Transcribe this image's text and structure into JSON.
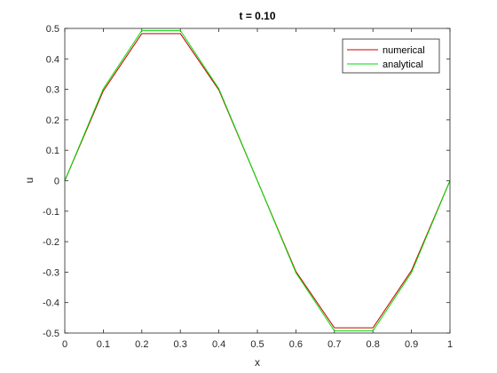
{
  "chart_data": {
    "type": "line",
    "title": "t = 0.10",
    "xlabel": "x",
    "ylabel": "u",
    "xlim": [
      0,
      1
    ],
    "ylim": [
      -0.5,
      0.5
    ],
    "xticks": [
      0,
      0.1,
      0.2,
      0.3,
      0.4,
      0.5,
      0.6,
      0.7,
      0.8,
      0.9,
      1
    ],
    "xtick_labels": [
      "0",
      "0.1",
      "0.2",
      "0.3",
      "0.4",
      "0.5",
      "0.6",
      "0.7",
      "0.8",
      "0.9",
      "1"
    ],
    "yticks": [
      0.5,
      0.4,
      0.3,
      0.2,
      0.1,
      0,
      -0.1,
      -0.2,
      -0.3,
      -0.4,
      -0.5
    ],
    "ytick_labels": [
      "0.5",
      "0.4",
      "0.3",
      "0.2",
      "0.1",
      "0",
      "-0.1",
      "-0.2",
      "-0.3",
      "-0.4",
      "-0.5"
    ],
    "grid": false,
    "legend_position": "top-right",
    "x": [
      0,
      0.1,
      0.2,
      0.3,
      0.4,
      0.5,
      0.6,
      0.7,
      0.8,
      0.9,
      1.0
    ],
    "series": [
      {
        "name": "numerical",
        "color": "#cc0000",
        "values": [
          0,
          0.295,
          0.483,
          0.483,
          0.298,
          0,
          -0.298,
          -0.483,
          -0.483,
          -0.295,
          0
        ]
      },
      {
        "name": "analytical",
        "color": "#00dd00",
        "values": [
          0,
          0.302,
          0.493,
          0.493,
          0.302,
          0,
          -0.302,
          -0.493,
          -0.493,
          -0.302,
          0
        ]
      }
    ]
  }
}
